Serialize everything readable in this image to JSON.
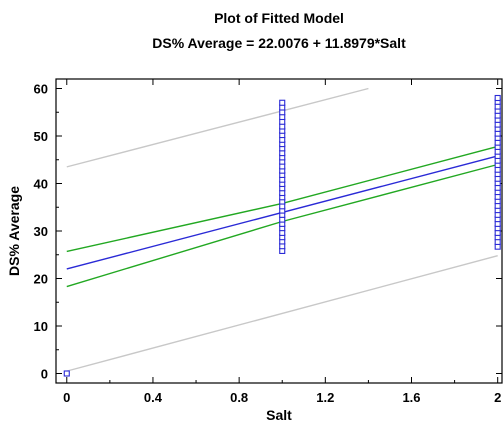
{
  "chart_data": {
    "type": "scatter",
    "title": "Plot of Fitted Model",
    "subtitle": "DS% Average = 22.0076 + 11.8979*Salt",
    "xlabel": "Salt",
    "ylabel": "DS% Average",
    "xlim": [
      -0.05,
      2.02
    ],
    "ylim": [
      -2,
      62
    ],
    "xticks": [
      "0",
      "0.4",
      "0.8",
      "1.2",
      "1.6",
      "2"
    ],
    "yticks": [
      "0",
      "10",
      "20",
      "30",
      "40",
      "50",
      "60"
    ],
    "grid": false,
    "observations": [
      {
        "x": 0,
        "y": [
          0
        ]
      },
      {
        "x": 1,
        "y": [
          25.8,
          26.8,
          27.8,
          28.7,
          29.6,
          30.6,
          31.5,
          32.4,
          33.4,
          34.3,
          35.2,
          36.2,
          37.1,
          38.0,
          39.0,
          39.9,
          40.8,
          41.8,
          42.7,
          43.6,
          44.6,
          45.5,
          46.4,
          47.4,
          48.3,
          49.2,
          50.2,
          51.1,
          52.0,
          53.0,
          54.0,
          55.0,
          56.0,
          57.0
        ]
      },
      {
        "x": 2,
        "y": [
          26.7,
          27.7,
          28.7,
          29.6,
          30.6,
          31.5,
          32.5,
          33.4,
          34.4,
          35.3,
          36.3,
          37.2,
          38.2,
          39.1,
          40.1,
          41.0,
          42.0,
          42.9,
          43.9,
          44.8,
          45.8,
          46.7,
          47.7,
          48.6,
          49.6,
          50.5,
          51.5,
          52.4,
          53.4,
          54.3,
          55.3,
          56.2,
          57.2,
          58.0
        ]
      }
    ],
    "fitted_line": {
      "intercept": 22.0076,
      "slope": 11.8979,
      "x": [
        0,
        2
      ],
      "color": "#2a2ad6"
    },
    "confidence_limits": {
      "lower": [
        [
          0,
          18.3
        ],
        [
          1,
          32.0
        ],
        [
          2,
          44.0
        ]
      ],
      "upper": [
        [
          0,
          25.7
        ],
        [
          1,
          35.8
        ],
        [
          2,
          47.8
        ]
      ],
      "color": "#22a822"
    },
    "prediction_limits": {
      "lower": [
        [
          0,
          0.5
        ],
        [
          2,
          24.8
        ]
      ],
      "upper": [
        [
          0,
          43.5
        ],
        [
          1.4,
          60
        ]
      ],
      "color": "#c8c8c8"
    },
    "marker_color": "#2a2ad6"
  }
}
